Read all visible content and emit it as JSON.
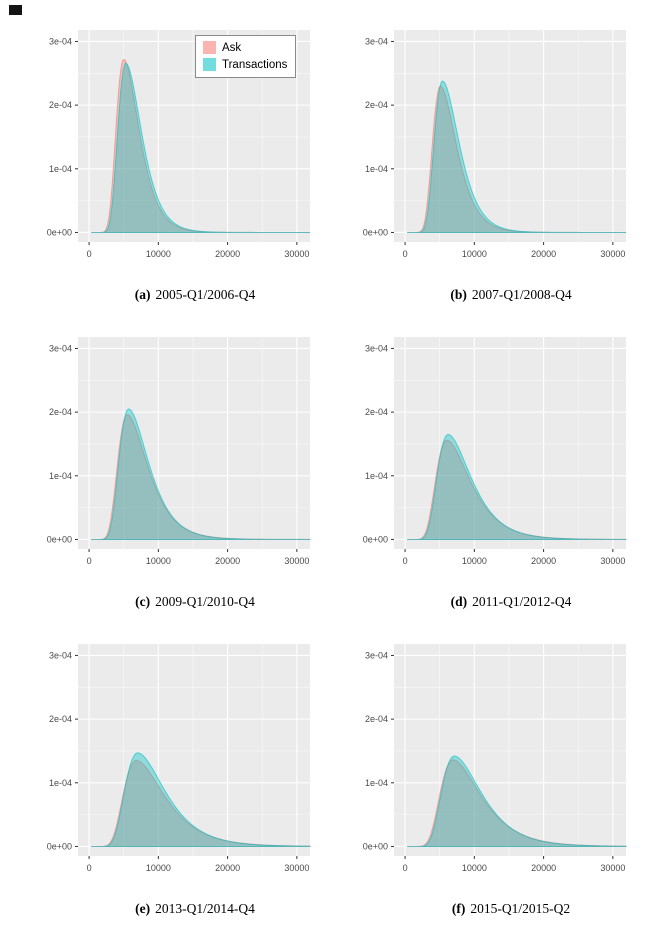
{
  "figure": {
    "legend": {
      "items": [
        {
          "label": "Ask",
          "color": "#F8766D"
        },
        {
          "label": "Transactions",
          "color": "#00BFC4"
        }
      ]
    }
  },
  "axes": {
    "xlim": [
      -1600,
      31900
    ],
    "ylim": [
      -1.5e-05,
      0.000318
    ],
    "x_ticks": [
      0,
      10000,
      20000,
      30000
    ],
    "x_tick_labels": [
      "0",
      "10000",
      "20000",
      "30000"
    ],
    "x_minor_ticks": [
      5000,
      15000,
      25000
    ],
    "y_ticks": [
      0,
      0.0001,
      0.0002,
      0.0003
    ],
    "y_tick_labels": [
      "0e+00",
      "1e-04",
      "2e-04",
      "3e-04"
    ],
    "y_minor_ticks": [
      5e-05,
      0.00015,
      0.00025
    ],
    "grid": true,
    "panel_background": "#EBEBEB",
    "gridline_color": "#FFFFFF",
    "tick_color": "#333333",
    "tick_label_color": "#4a4a4a"
  },
  "curve_model": {
    "skew_left_factor": 0.7,
    "x_start": 300,
    "x_step": 200
  },
  "chart_data": [
    {
      "type": "area",
      "subtype": "density",
      "caption_label": "(a)",
      "caption_text": "2005-Q1/2006-Q4",
      "legend_position": "inside-top",
      "series": [
        {
          "name": "Ask",
          "color": "#F8766D",
          "mode_x": 5000,
          "peak_density": 0.000272,
          "log_sigma": 0.36
        },
        {
          "name": "Transactions",
          "color": "#00BFC4",
          "mode_x": 5300,
          "peak_density": 0.000266,
          "log_sigma": 0.35
        }
      ]
    },
    {
      "type": "area",
      "subtype": "density",
      "caption_label": "(b)",
      "caption_text": "2007-Q1/2008-Q4",
      "legend_position": "none",
      "series": [
        {
          "name": "Ask",
          "color": "#F8766D",
          "mode_x": 5100,
          "peak_density": 0.00023,
          "log_sigma": 0.37
        },
        {
          "name": "Transactions",
          "color": "#00BFC4",
          "mode_x": 5400,
          "peak_density": 0.000238,
          "log_sigma": 0.36
        }
      ]
    },
    {
      "type": "area",
      "subtype": "density",
      "caption_label": "(c)",
      "caption_text": "2009-Q1/2010-Q4",
      "legend_position": "none",
      "series": [
        {
          "name": "Ask",
          "color": "#F8766D",
          "mode_x": 5500,
          "peak_density": 0.000196,
          "log_sigma": 0.42
        },
        {
          "name": "Transactions",
          "color": "#00BFC4",
          "mode_x": 5700,
          "peak_density": 0.000205,
          "log_sigma": 0.4
        }
      ]
    },
    {
      "type": "area",
      "subtype": "density",
      "caption_label": "(d)",
      "caption_text": "2011-Q1/2012-Q4",
      "legend_position": "none",
      "series": [
        {
          "name": "Ask",
          "color": "#F8766D",
          "mode_x": 6000,
          "peak_density": 0.000156,
          "log_sigma": 0.44
        },
        {
          "name": "Transactions",
          "color": "#00BFC4",
          "mode_x": 6200,
          "peak_density": 0.000165,
          "log_sigma": 0.42
        }
      ]
    },
    {
      "type": "area",
      "subtype": "density",
      "caption_label": "(e)",
      "caption_text": "2013-Q1/2014-Q4",
      "legend_position": "none",
      "series": [
        {
          "name": "Ask",
          "color": "#F8766D",
          "mode_x": 6800,
          "peak_density": 0.000135,
          "log_sigma": 0.46
        },
        {
          "name": "Transactions",
          "color": "#00BFC4",
          "mode_x": 7000,
          "peak_density": 0.000147,
          "log_sigma": 0.44
        }
      ]
    },
    {
      "type": "area",
      "subtype": "density",
      "caption_label": "(f)",
      "caption_text": "2015-Q1/2015-Q2",
      "legend_position": "none",
      "series": [
        {
          "name": "Ask",
          "color": "#F8766D",
          "mode_x": 6900,
          "peak_density": 0.000136,
          "log_sigma": 0.45
        },
        {
          "name": "Transactions",
          "color": "#00BFC4",
          "mode_x": 7100,
          "peak_density": 0.000142,
          "log_sigma": 0.43
        }
      ]
    }
  ]
}
